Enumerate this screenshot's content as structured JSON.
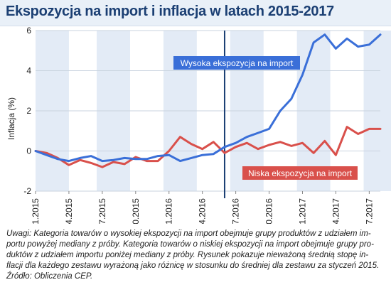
{
  "title": "Ekspozycja na import i inflacja w latach 2015-2017",
  "colors": {
    "high": "#3a6fd8",
    "low": "#d9504b",
    "band": "#e3ebf6",
    "title_bg": "#e9f0f8",
    "title_text": "#1b3f73",
    "marker": "#1b3f73"
  },
  "chart_data": {
    "type": "line",
    "ylabel": "Inflacja (%)",
    "ylim": [
      -2,
      6
    ],
    "yticks": [
      -2,
      0,
      2,
      4,
      6
    ],
    "x_tick_labels": [
      "01.2015",
      "04.2015",
      "07.2015",
      "10.2015",
      "01.2016",
      "04.2016",
      "07.2016",
      "10.2016",
      "01.2017",
      "04.2017",
      "07.2017"
    ],
    "x": [
      "01.2015",
      "02.2015",
      "03.2015",
      "04.2015",
      "05.2015",
      "06.2015",
      "07.2015",
      "08.2015",
      "09.2015",
      "10.2015",
      "11.2015",
      "12.2015",
      "01.2016",
      "02.2016",
      "03.2016",
      "04.2016",
      "05.2016",
      "06.2016",
      "07.2016",
      "08.2016",
      "09.2016",
      "10.2016",
      "11.2016",
      "12.2016",
      "01.2017",
      "02.2017",
      "03.2017",
      "04.2017",
      "05.2017",
      "06.2017",
      "07.2017",
      "08.2017"
    ],
    "vertical_marker_x": "06.2016",
    "shaded_bands": true,
    "grid": true,
    "series": [
      {
        "name": "Wysoka ekspozycja na import",
        "color": "#3a6fd8",
        "values": [
          0.0,
          -0.2,
          -0.4,
          -0.5,
          -0.35,
          -0.25,
          -0.5,
          -0.45,
          -0.35,
          -0.4,
          -0.4,
          -0.25,
          -0.2,
          -0.5,
          -0.35,
          -0.2,
          -0.15,
          0.2,
          0.4,
          0.7,
          0.9,
          1.1,
          2.0,
          2.6,
          3.8,
          5.4,
          5.8,
          5.1,
          5.6,
          5.2,
          5.3,
          5.8
        ]
      },
      {
        "name": "Niska ekspozycja na import",
        "color": "#d9504b",
        "values": [
          0.0,
          -0.1,
          -0.35,
          -0.7,
          -0.45,
          -0.6,
          -0.8,
          -0.55,
          -0.65,
          -0.3,
          -0.5,
          -0.5,
          0.0,
          0.7,
          0.35,
          0.1,
          0.45,
          -0.1,
          0.2,
          0.4,
          0.1,
          0.3,
          0.45,
          0.25,
          0.4,
          -0.1,
          0.5,
          -0.2,
          1.2,
          0.85,
          1.1,
          1.1
        ]
      }
    ]
  },
  "notes": {
    "line1": "Uwagi: Kategoria towarów o wysokiej ekspozycji na import obejmuje grupy produktów z udziałem im-",
    "line2": "portu powyżej mediany z próby. Kategoria towarów o niskiej ekspozycji na import obejmuje grupy pro-",
    "line3": "duktów z udziałem importu poniżej mediany z próby. Rysunek pokazuje nieważoną średnią stopę in-",
    "line4": "flacji dla każdego zestawu wyrażoną jako różnicę w stosunku do średniej dla zestawu za styczeń 2015.",
    "source": "Źródło: Obliczenia CEP."
  }
}
